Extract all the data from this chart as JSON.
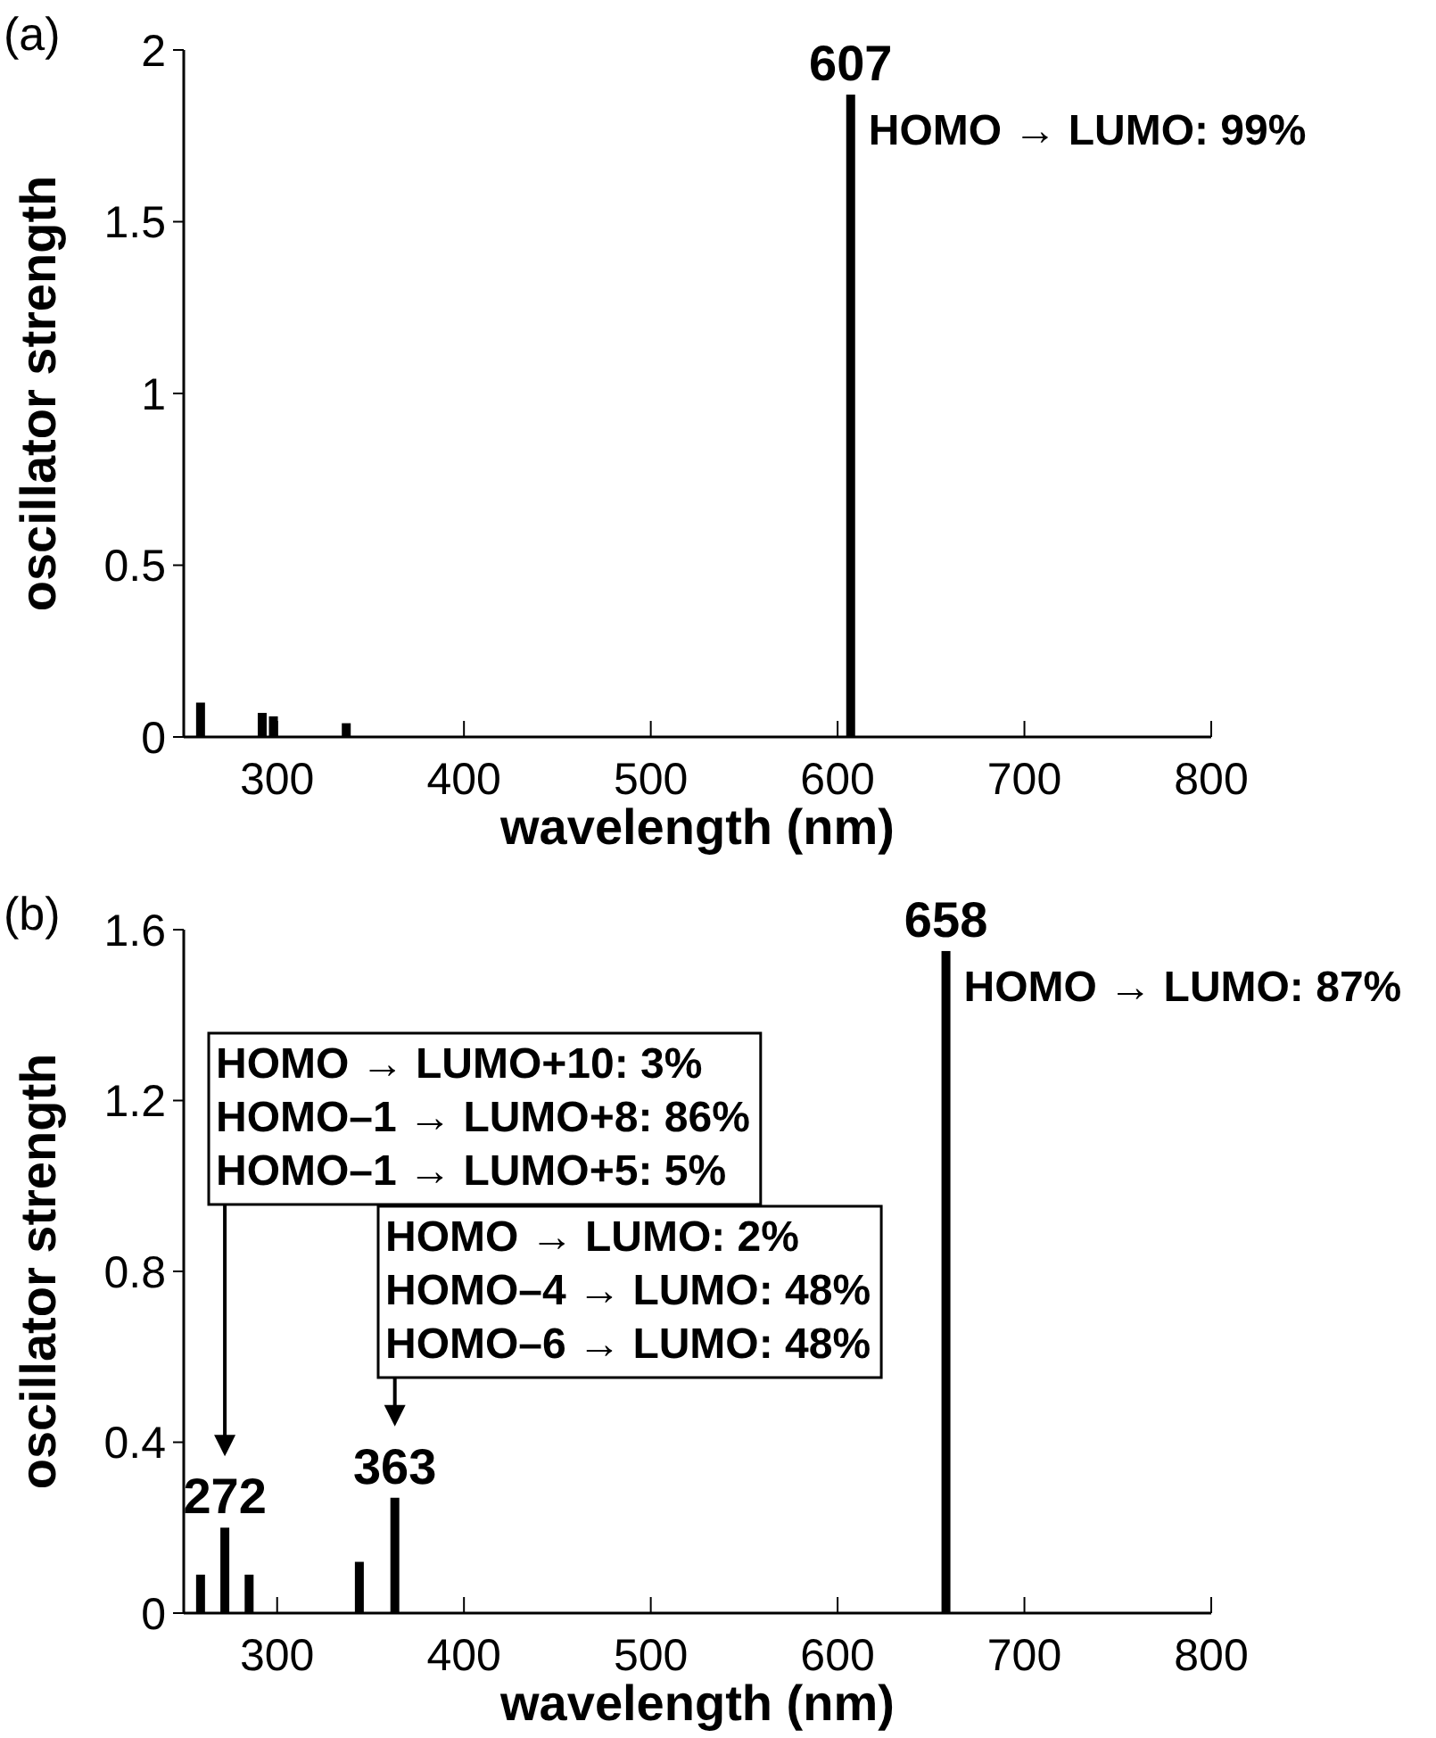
{
  "chart_data": [
    {
      "type": "bar",
      "title": "(a)",
      "xlabel": "wavelength (nm)",
      "ylabel": "oscillator strength",
      "x": [
        259,
        292,
        298,
        337,
        607
      ],
      "values": [
        0.1,
        0.07,
        0.06,
        0.04,
        1.87
      ],
      "color": "#000000",
      "xlim": [
        250,
        800
      ],
      "xticks": [
        300,
        400,
        500,
        600,
        700,
        800
      ],
      "ylim": [
        0,
        2
      ],
      "yticks": [
        0,
        0.5,
        1,
        1.5,
        2
      ],
      "annotations": [
        {
          "text": "607",
          "x": 607,
          "y": 1.87
        },
        {
          "text": "HOMO → LUMO: 99%",
          "x": 607,
          "y": 1.87
        }
      ]
    },
    {
      "type": "bar",
      "title": "(b)",
      "xlabel": "wavelength (nm)",
      "ylabel": "oscillator strength",
      "x": [
        259,
        272,
        285,
        344,
        363,
        658
      ],
      "values": [
        0.09,
        0.2,
        0.09,
        0.12,
        0.27,
        1.55
      ],
      "color": "#000000",
      "xlim": [
        250,
        800
      ],
      "xticks": [
        300,
        400,
        500,
        600,
        700,
        800
      ],
      "ylim": [
        0,
        1.6
      ],
      "yticks": [
        0,
        0.4,
        0.8,
        1.2,
        1.6
      ],
      "annotations": [
        {
          "text": "658",
          "x": 658,
          "y": 1.55
        },
        {
          "text": "HOMO → LUMO: 87%",
          "x": 658,
          "y": 1.55
        },
        "HOMO → LUMO+10: 3%\nHOMO–1 → LUMO+8: 86%\nHOMO–1 → LUMO+5: 5%",
        "HOMO → LUMO: 2%\nHOMO–4 → LUMO: 48%\nHOMO–6 → LUMO: 48%",
        {
          "text": "272",
          "x": 272,
          "y": 0.2
        },
        {
          "text": "363",
          "x": 363,
          "y": 0.27
        }
      ]
    }
  ]
}
